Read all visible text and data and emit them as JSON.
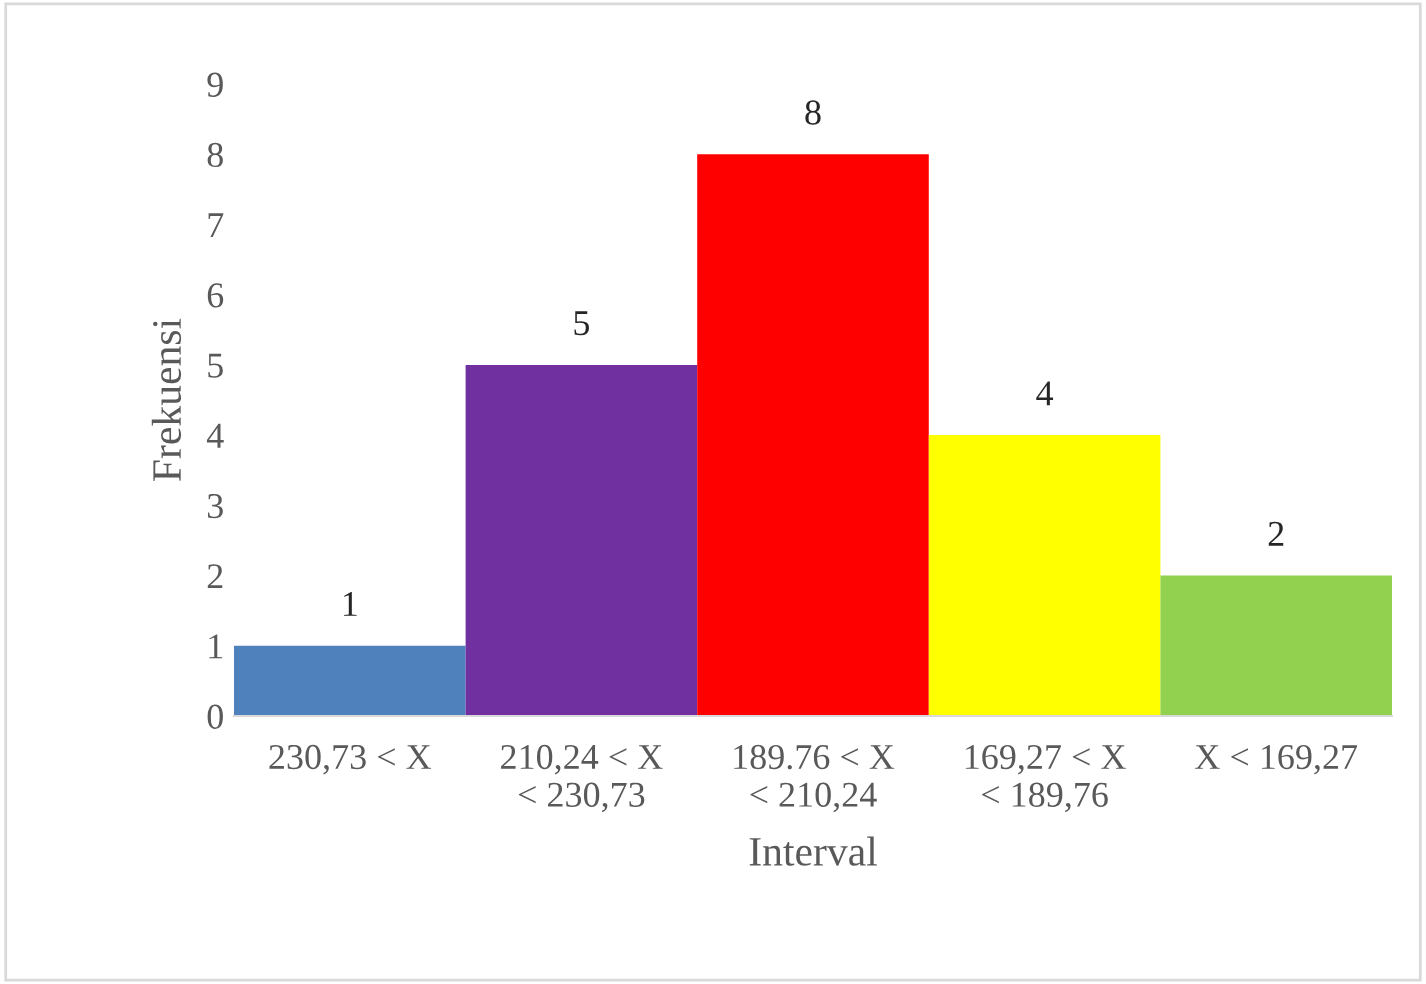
{
  "chart_data": {
    "type": "bar",
    "xlabel": "Interval",
    "ylabel": "Frekuensi",
    "categories": [
      "230,73 < X",
      "210,24 < X\n< 230,73",
      "189.76 < X\n< 210,24",
      "169,27 < X\n< 189,76",
      "X < 169,27"
    ],
    "values": [
      1,
      5,
      8,
      4,
      2
    ],
    "colors": [
      "#4f81bd",
      "#7030a0",
      "#ff0000",
      "#ffff00",
      "#92d050"
    ],
    "ylim": [
      0,
      9
    ],
    "yticks": [
      0,
      1,
      2,
      3,
      4,
      5,
      6,
      7,
      8,
      9
    ],
    "data_labels": true,
    "grid": false,
    "legend": false
  }
}
